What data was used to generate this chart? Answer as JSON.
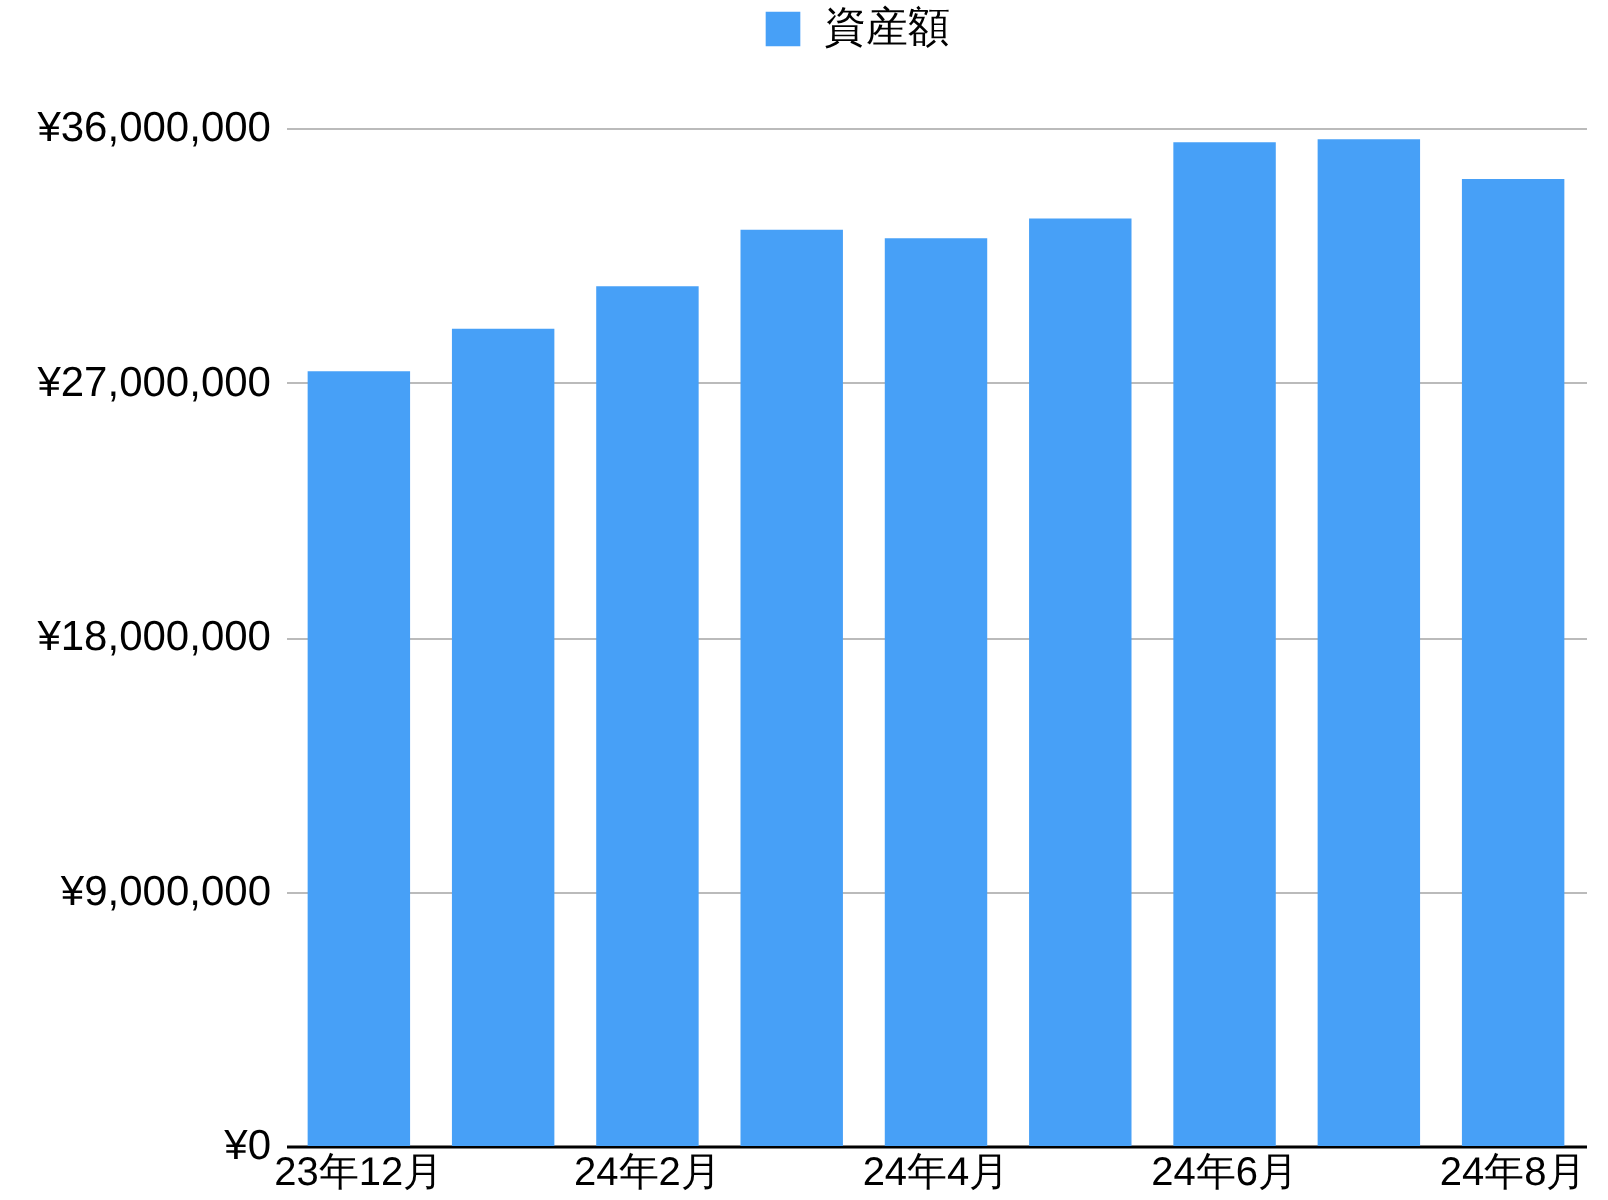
{
  "chart_data": {
    "type": "bar",
    "categories": [
      "23年12月",
      null,
      "24年2月",
      null,
      "24年4月",
      null,
      "24年6月",
      null,
      "24年8月"
    ],
    "series": [
      {
        "name": "資産額",
        "color": "#47a0f7",
        "values": [
          27400000,
          28900000,
          30400000,
          32400000,
          32100000,
          32800000,
          35500000,
          35600000,
          34200000
        ]
      }
    ],
    "ylim": [
      0,
      36000000
    ],
    "yticks": [
      {
        "value": 0,
        "label": "¥0"
      },
      {
        "value": 9000000,
        "label": "¥9,000,000"
      },
      {
        "value": 18000000,
        "label": "¥18,000,000"
      },
      {
        "value": 27000000,
        "label": "¥27,000,000"
      },
      {
        "value": 36000000,
        "label": "¥36,000,000"
      }
    ],
    "grid": "y",
    "legend": "top"
  }
}
